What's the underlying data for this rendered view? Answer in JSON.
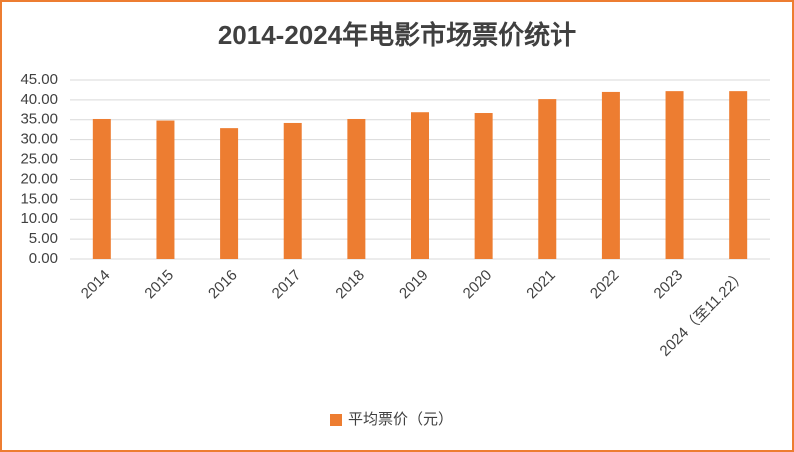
{
  "chart_data": {
    "type": "bar",
    "title": "2014-2024年电影市场票价统计",
    "categories": [
      "2014",
      "2015",
      "2016",
      "2017",
      "2018",
      "2019",
      "2020",
      "2021",
      "2022",
      "2023",
      "2024（至11.22）"
    ],
    "series": [
      {
        "name": "平均票价（元）",
        "color": "#ed7d31",
        "values": [
          35.2,
          34.8,
          32.9,
          34.2,
          35.2,
          36.9,
          36.7,
          40.2,
          42.0,
          42.2,
          42.2
        ]
      }
    ],
    "ylim": [
      0,
      45
    ],
    "yticks": [
      {
        "value": 0,
        "label": "0.00"
      },
      {
        "value": 5,
        "label": "5.00"
      },
      {
        "value": 10,
        "label": "10.00"
      },
      {
        "value": 15,
        "label": "15.00"
      },
      {
        "value": 20,
        "label": "20.00"
      },
      {
        "value": 25,
        "label": "25.00"
      },
      {
        "value": 30,
        "label": "30.00"
      },
      {
        "value": 35,
        "label": "35.00"
      },
      {
        "value": 40,
        "label": "40.00"
      },
      {
        "value": 45,
        "label": "45.00"
      }
    ],
    "grid": true,
    "legend": "bottom"
  }
}
